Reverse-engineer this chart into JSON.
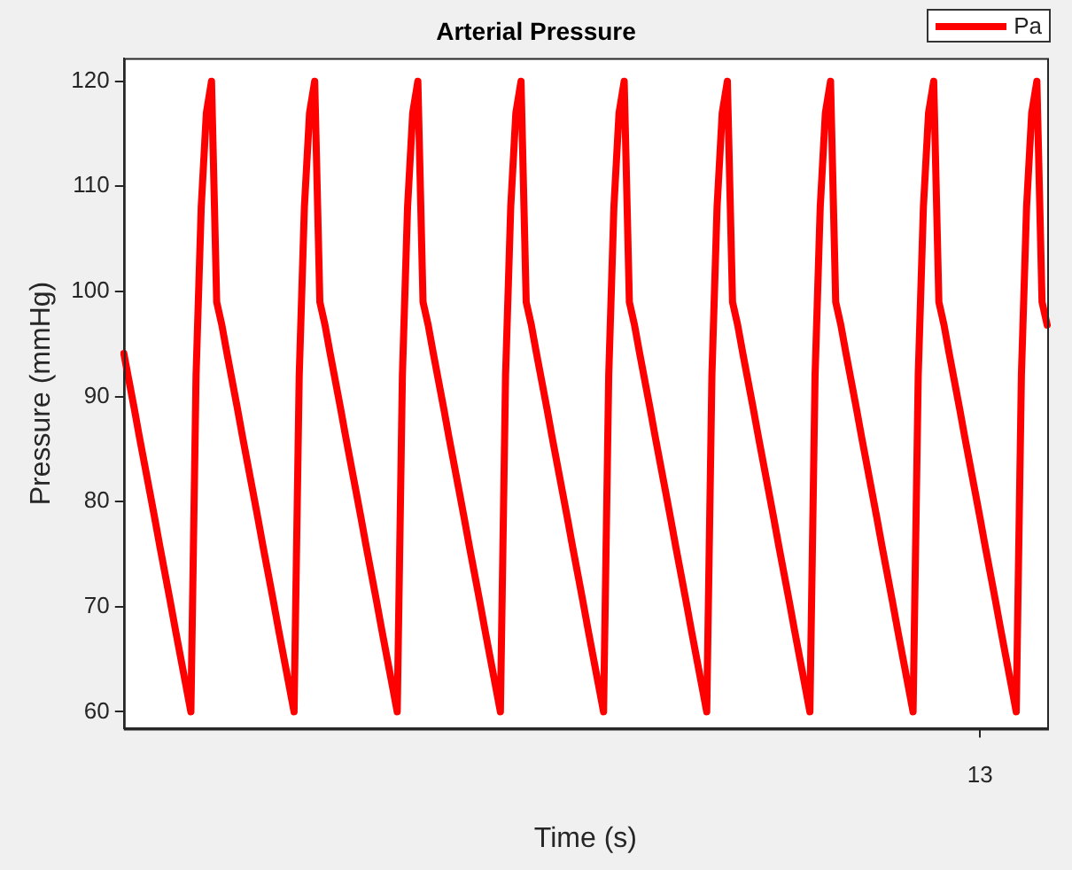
{
  "chart_data": {
    "type": "line",
    "title": "Arterial Pressure",
    "xlabel": "Time (s)",
    "ylabel": "Pressure (mmHg)",
    "categories": [
      null,
      null,
      null,
      null,
      null,
      null,
      null,
      null,
      null,
      null,
      null,
      null,
      null,
      null,
      null,
      null,
      null,
      null,
      null,
      null,
      null,
      null,
      null,
      null,
      null,
      null,
      null,
      null,
      null,
      null,
      null,
      null,
      null,
      null,
      null,
      null,
      null,
      null,
      null,
      null,
      null,
      null,
      null,
      null,
      null,
      null,
      null,
      null,
      null,
      null,
      null,
      null,
      null,
      null,
      null,
      null,
      null,
      null,
      null,
      null,
      null,
      null,
      null,
      null,
      null,
      null,
      null,
      null,
      null,
      null,
      null,
      null,
      null,
      null,
      null,
      null,
      null,
      null,
      null,
      null,
      null,
      null,
      null,
      null,
      null,
      null,
      null,
      null,
      null,
      null,
      null,
      null,
      null,
      null,
      null,
      null,
      null,
      null,
      null,
      null,
      null,
      null,
      null,
      null,
      null,
      null,
      null,
      null,
      null,
      null,
      null,
      null,
      null,
      null,
      null,
      null,
      null,
      null,
      null,
      null,
      null,
      null,
      null,
      null,
      null,
      null,
      null,
      null,
      null,
      null,
      null,
      null,
      null,
      null,
      null,
      null,
      null,
      null,
      null,
      null,
      null,
      null,
      null,
      null,
      null,
      null,
      null,
      null,
      null,
      null,
      null,
      null,
      null,
      null,
      null,
      null,
      null,
      null,
      null,
      null,
      null,
      null,
      null,
      null,
      null,
      null,
      "13",
      null,
      null,
      null,
      null,
      null,
      null,
      null,
      null,
      null,
      null,
      null,
      null,
      null
    ],
    "series": [
      {
        "name": "Pa",
        "color": "#ff0000",
        "values": [
          94.1,
          91.5,
          88.9,
          86.2,
          83.6,
          81,
          78.4,
          75.7,
          73.1,
          70.5,
          67.8,
          65.2,
          62.6,
          60,
          92,
          108,
          117,
          120,
          99,
          96.8,
          94.1,
          91.5,
          88.9,
          86.2,
          83.6,
          81,
          78.4,
          75.7,
          73.1,
          70.5,
          67.8,
          65.2,
          62.6,
          60,
          92,
          108,
          117,
          120,
          99,
          96.8,
          94.1,
          91.5,
          88.9,
          86.2,
          83.6,
          81,
          78.4,
          75.7,
          73.1,
          70.5,
          67.8,
          65.2,
          62.6,
          60,
          92,
          108,
          117,
          120,
          99,
          96.8,
          94.1,
          91.5,
          88.9,
          86.2,
          83.6,
          81,
          78.4,
          75.7,
          73.1,
          70.5,
          67.8,
          65.2,
          62.6,
          60,
          92,
          108,
          117,
          120,
          99,
          96.8,
          94.1,
          91.5,
          88.9,
          86.2,
          83.6,
          81,
          78.4,
          75.7,
          73.1,
          70.5,
          67.8,
          65.2,
          62.6,
          60,
          92,
          108,
          117,
          120,
          99,
          96.8,
          94.1,
          91.5,
          88.9,
          86.2,
          83.6,
          81,
          78.4,
          75.7,
          73.1,
          70.5,
          67.8,
          65.2,
          62.6,
          60,
          92,
          108,
          117,
          120,
          99,
          96.8,
          94.1,
          91.5,
          88.9,
          86.2,
          83.6,
          81,
          78.4,
          75.7,
          73.1,
          70.5,
          67.8,
          65.2,
          62.6,
          60,
          92,
          108,
          117,
          120,
          99,
          96.8,
          94.1,
          91.5,
          88.9,
          86.2,
          83.6,
          81,
          78.4,
          75.7,
          73.1,
          70.5,
          67.8,
          65.2,
          62.6,
          60,
          92,
          108,
          117,
          120,
          99,
          96.8,
          94.1,
          91.5,
          88.9,
          86.2,
          83.6,
          81,
          78.4,
          75.7,
          73.1,
          70.5,
          67.8,
          65.2,
          62.6,
          60,
          92,
          108,
          117,
          120,
          99,
          96.8
        ]
      }
    ],
    "ylim": [
      58.4,
      122.2
    ],
    "yticks": [
      60,
      70,
      80,
      90,
      100,
      110,
      120
    ],
    "grid": false,
    "legend": "top right",
    "marker": "none",
    "line_style": "solid"
  }
}
